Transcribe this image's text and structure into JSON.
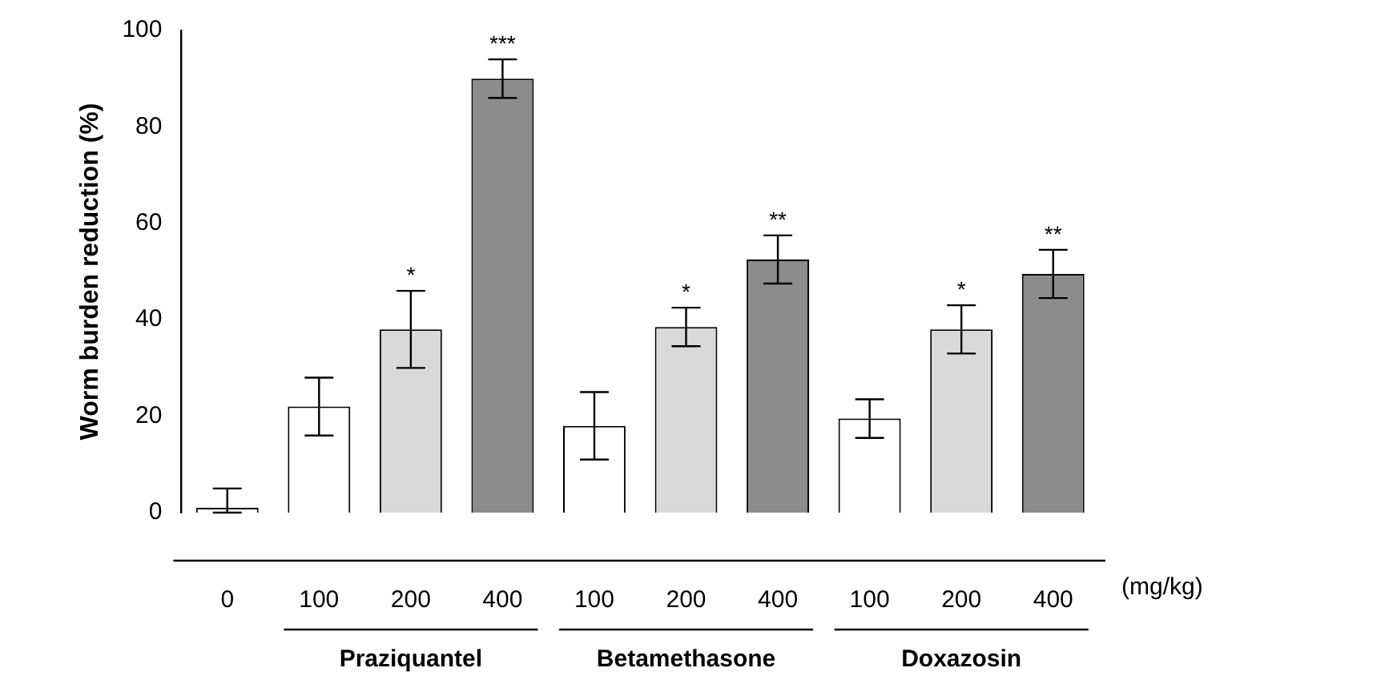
{
  "chart_data": {
    "type": "bar",
    "ylabel": "Worm burden reduction (%)",
    "categories": [
      "0",
      "100",
      "200",
      "400",
      "100",
      "200",
      "400",
      "100",
      "200",
      "400"
    ],
    "values": [
      1,
      22,
      38,
      90,
      18,
      38.5,
      52.5,
      19.5,
      38,
      49.5
    ],
    "colors": [
      "#ffffff",
      "#ffffff",
      "#d9d9d9",
      "#8c8c8c",
      "#ffffff",
      "#d9d9d9",
      "#8c8c8c",
      "#ffffff",
      "#d9d9d9",
      "#8c8c8c"
    ],
    "errors": [
      [
        0,
        5
      ],
      [
        16,
        28
      ],
      [
        30,
        46
      ],
      [
        86,
        94
      ],
      [
        11,
        25
      ],
      [
        34.5,
        42.5
      ],
      [
        47.5,
        57.5
      ],
      [
        15.5,
        23.5
      ],
      [
        33,
        43
      ],
      [
        44.5,
        54.5
      ]
    ],
    "value_labels": [
      null,
      null,
      "*",
      "***",
      null,
      "*",
      "**",
      null,
      "*",
      "**"
    ],
    "ylim": [
      0,
      100
    ],
    "yticks": [
      0,
      20,
      40,
      60,
      80,
      100
    ],
    "grid": false,
    "legend": false,
    "annotations": [
      "(mg/kg)",
      "Praziquantel",
      "Betamethasone",
      "Doxazosin"
    ]
  }
}
